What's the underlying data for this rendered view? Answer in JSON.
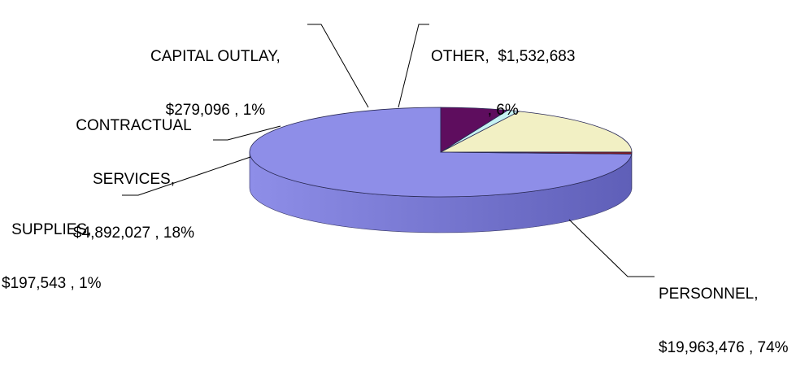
{
  "chart_data": {
    "type": "pie",
    "style": "3d",
    "title": "",
    "slices": [
      {
        "name": "PERSONNEL",
        "amount": "$19,963,476",
        "value": 19963476,
        "percent": "74%",
        "color": "#8E8EE8",
        "side_color": "#5F5FB8",
        "label_lines": [
          "PERSONNEL,",
          "$19,963,476 , 74%"
        ]
      },
      {
        "name": "SUPPLIES",
        "amount": "$197,543",
        "value": 197543,
        "percent": "1%",
        "color": "#8B1A1A",
        "side_color": "#5A0F0F",
        "label_lines": [
          "SUPPLIES,",
          "$197,543 , 1%"
        ]
      },
      {
        "name": "CONTRACTUAL SERVICES",
        "amount": "$4,892,027",
        "value": 4892027,
        "percent": "18%",
        "color": "#F2F0C4",
        "side_color": "#C9C79A",
        "label_lines": [
          "CONTRACTUAL",
          "SERVICES,",
          "$4,892,027 , 18%"
        ]
      },
      {
        "name": "CAPITAL OUTLAY",
        "amount": "$279,096",
        "value": 279096,
        "percent": "1%",
        "color": "#C6F2F2",
        "side_color": "#8FC4C4",
        "label_lines": [
          "CAPITAL OUTLAY,",
          "$279,096 , 1%"
        ]
      },
      {
        "name": "OTHER",
        "amount": "$1,532,683",
        "value": 1532683,
        "percent": "6%",
        "color": "#5E0D5E",
        "side_color": "#3E063E",
        "label_lines": [
          "OTHER,  $1,532,683",
          ", 6%"
        ]
      }
    ],
    "legend": "none"
  }
}
